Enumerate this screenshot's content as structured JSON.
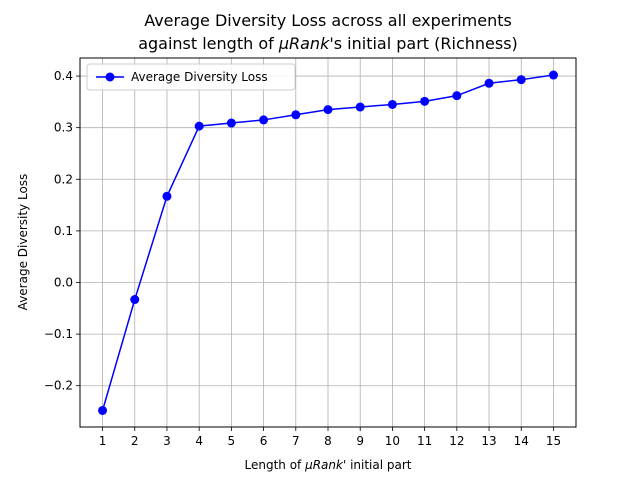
{
  "chart_data": {
    "type": "line",
    "title_line1": "Average Diversity Loss across all experiments",
    "title_line2_prefix": "against length of ",
    "title_line2_math": "μRank",
    "title_line2_suffix": "'s initial part (Richness)",
    "xlabel_prefix": "Length of ",
    "xlabel_math": "μRank",
    "xlabel_suffix": "' initial part",
    "ylabel": "Average Diversity Loss",
    "x": [
      1,
      2,
      3,
      4,
      5,
      6,
      7,
      8,
      9,
      10,
      11,
      12,
      13,
      14,
      15
    ],
    "xlim": [
      0.3,
      15.7
    ],
    "ylim": [
      -0.28,
      0.435
    ],
    "yticks": [
      -0.2,
      -0.1,
      0.0,
      0.1,
      0.2,
      0.3,
      0.4
    ],
    "ytick_labels": [
      "−0.2",
      "−0.1",
      "0.0",
      "0.1",
      "0.2",
      "0.3",
      "0.4"
    ],
    "grid": true,
    "legend_position": "upper-left",
    "series": [
      {
        "name": "Average Diversity Loss",
        "color": "#0000ff",
        "marker": "circle",
        "values": [
          -0.248,
          -0.033,
          0.167,
          0.303,
          0.309,
          0.315,
          0.325,
          0.335,
          0.34,
          0.345,
          0.351,
          0.362,
          0.386,
          0.393,
          0.402
        ]
      }
    ]
  }
}
